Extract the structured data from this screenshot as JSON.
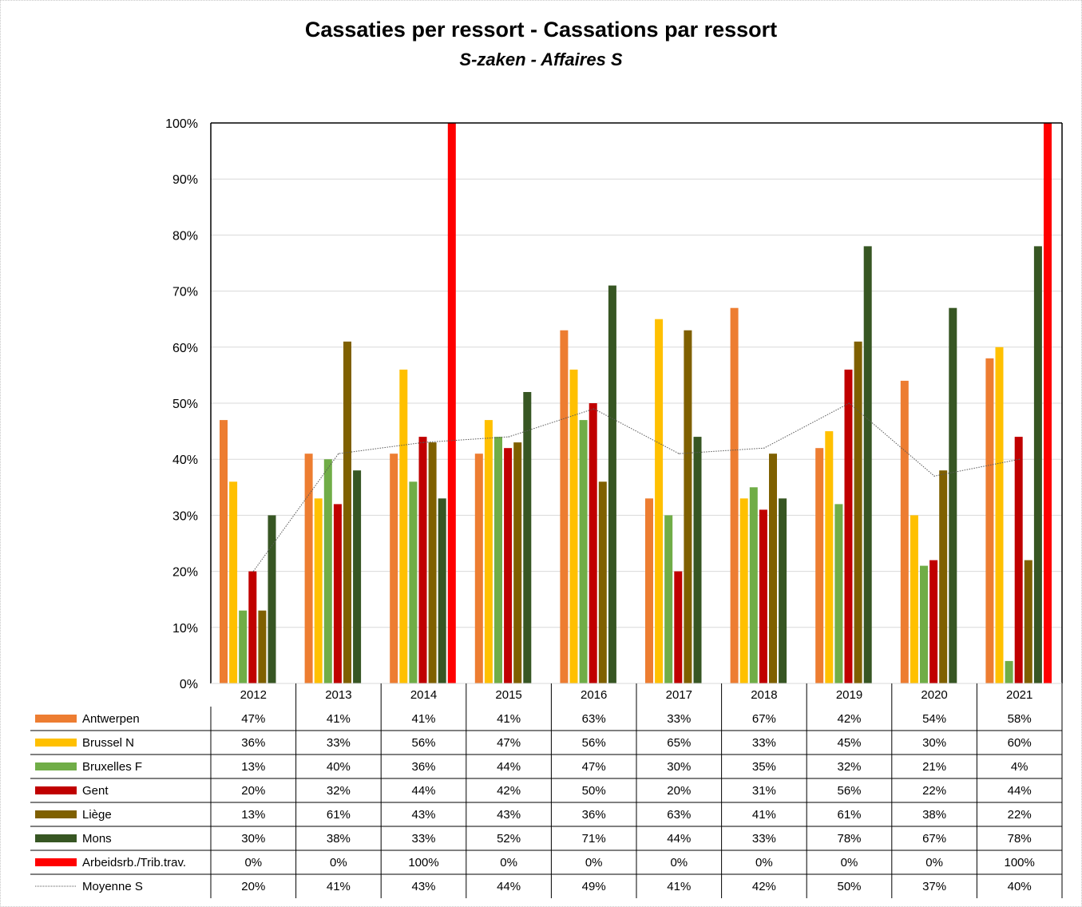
{
  "chart_data": {
    "type": "bar",
    "title": "Cassaties per ressort - Cassations par ressort",
    "subtitle": "S-zaken - Affaires S",
    "xlabel": "",
    "ylabel": "",
    "ylim": [
      0,
      100
    ],
    "y_ticks": [
      "0%",
      "10%",
      "20%",
      "30%",
      "40%",
      "50%",
      "60%",
      "70%",
      "80%",
      "90%",
      "100%"
    ],
    "grid": true,
    "legend": "data-table-bottom",
    "categories": [
      "2012",
      "2013",
      "2014",
      "2015",
      "2016",
      "2017",
      "2018",
      "2019",
      "2020",
      "2021"
    ],
    "series": [
      {
        "name": "Antwerpen",
        "kind": "bar",
        "color": "#ed7d31",
        "values": [
          47,
          41,
          41,
          41,
          63,
          33,
          67,
          42,
          54,
          58
        ],
        "labels": [
          "47%",
          "41%",
          "41%",
          "41%",
          "63%",
          "33%",
          "67%",
          "42%",
          "54%",
          "58%"
        ]
      },
      {
        "name": "Brussel N",
        "kind": "bar",
        "color": "#ffc000",
        "values": [
          36,
          33,
          56,
          47,
          56,
          65,
          33,
          45,
          30,
          60
        ],
        "labels": [
          "36%",
          "33%",
          "56%",
          "47%",
          "56%",
          "65%",
          "33%",
          "45%",
          "30%",
          "60%"
        ]
      },
      {
        "name": "Bruxelles F",
        "kind": "bar",
        "color": "#70ad47",
        "values": [
          13,
          40,
          36,
          44,
          47,
          30,
          35,
          32,
          21,
          4
        ],
        "labels": [
          "13%",
          "40%",
          "36%",
          "44%",
          "47%",
          "30%",
          "35%",
          "32%",
          "21%",
          "4%"
        ]
      },
      {
        "name": "Gent",
        "kind": "bar",
        "color": "#c00000",
        "values": [
          20,
          32,
          44,
          42,
          50,
          20,
          31,
          56,
          22,
          44
        ],
        "labels": [
          "20%",
          "32%",
          "44%",
          "42%",
          "50%",
          "20%",
          "31%",
          "56%",
          "22%",
          "44%"
        ]
      },
      {
        "name": "Liège",
        "kind": "bar",
        "color": "#7f6000",
        "values": [
          13,
          61,
          43,
          43,
          36,
          63,
          41,
          61,
          38,
          22
        ],
        "labels": [
          "13%",
          "61%",
          "43%",
          "43%",
          "36%",
          "63%",
          "41%",
          "61%",
          "38%",
          "22%"
        ]
      },
      {
        "name": "Mons",
        "kind": "bar",
        "color": "#375623",
        "values": [
          30,
          38,
          33,
          52,
          71,
          44,
          33,
          78,
          67,
          78
        ],
        "labels": [
          "30%",
          "38%",
          "33%",
          "52%",
          "71%",
          "44%",
          "33%",
          "78%",
          "67%",
          "78%"
        ]
      },
      {
        "name": "Arbeidsrb./Trib.trav.",
        "kind": "bar",
        "color": "#ff0000",
        "values": [
          0,
          0,
          100,
          0,
          0,
          0,
          0,
          0,
          0,
          100
        ],
        "labels": [
          "0%",
          "0%",
          "100%",
          "0%",
          "0%",
          "0%",
          "0%",
          "0%",
          "0%",
          "100%"
        ]
      },
      {
        "name": "Moyenne S",
        "kind": "line",
        "color": "#595959",
        "values": [
          20,
          41,
          43,
          44,
          49,
          41,
          42,
          50,
          37,
          40
        ],
        "labels": [
          "20%",
          "41%",
          "43%",
          "44%",
          "49%",
          "41%",
          "42%",
          "50%",
          "37%",
          "40%"
        ]
      }
    ]
  }
}
